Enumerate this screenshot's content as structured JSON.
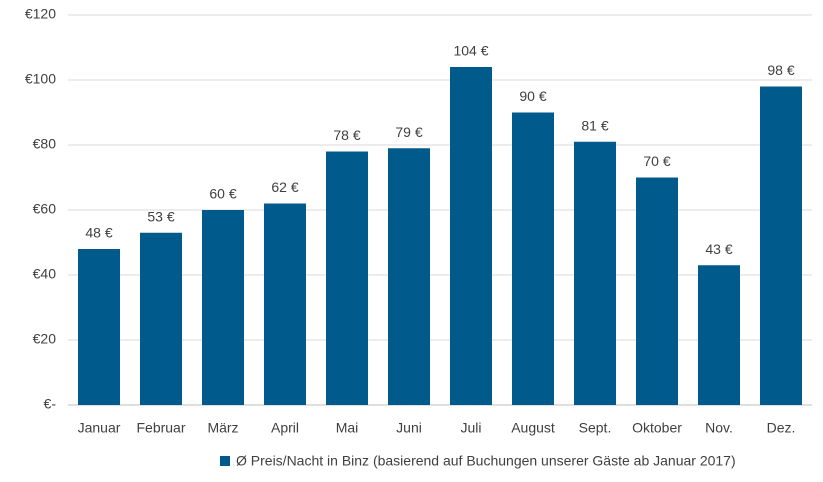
{
  "chart_data": {
    "type": "bar",
    "categories": [
      "Januar",
      "Februar",
      "März",
      "April",
      "Mai",
      "Juni",
      "Juli",
      "August",
      "Sept.",
      "Oktober",
      "Nov.",
      "Dez."
    ],
    "series": [
      {
        "name": "Ø Preis/Nacht in Binz (basierend auf Buchungen unserer Gäste ab Januar 2017)",
        "color": "#005a8c",
        "values": [
          48,
          53,
          60,
          62,
          78,
          79,
          104,
          90,
          81,
          70,
          43,
          98
        ],
        "value_labels": [
          "48 €",
          "53 €",
          "60 €",
          "62 €",
          "78 €",
          "79 €",
          "104 €",
          "90 €",
          "81 €",
          "70 €",
          "43 €",
          "98 €"
        ]
      }
    ],
    "ylim": [
      0,
      120
    ],
    "yticks": [
      {
        "value": 0,
        "label": "€-"
      },
      {
        "value": 20,
        "label": "€20"
      },
      {
        "value": 40,
        "label": "€40"
      },
      {
        "value": 60,
        "label": "€60"
      },
      {
        "value": 80,
        "label": "€80"
      },
      {
        "value": 100,
        "label": "€100"
      },
      {
        "value": 120,
        "label": "€120"
      }
    ],
    "grid": true,
    "legend": "bottom"
  }
}
